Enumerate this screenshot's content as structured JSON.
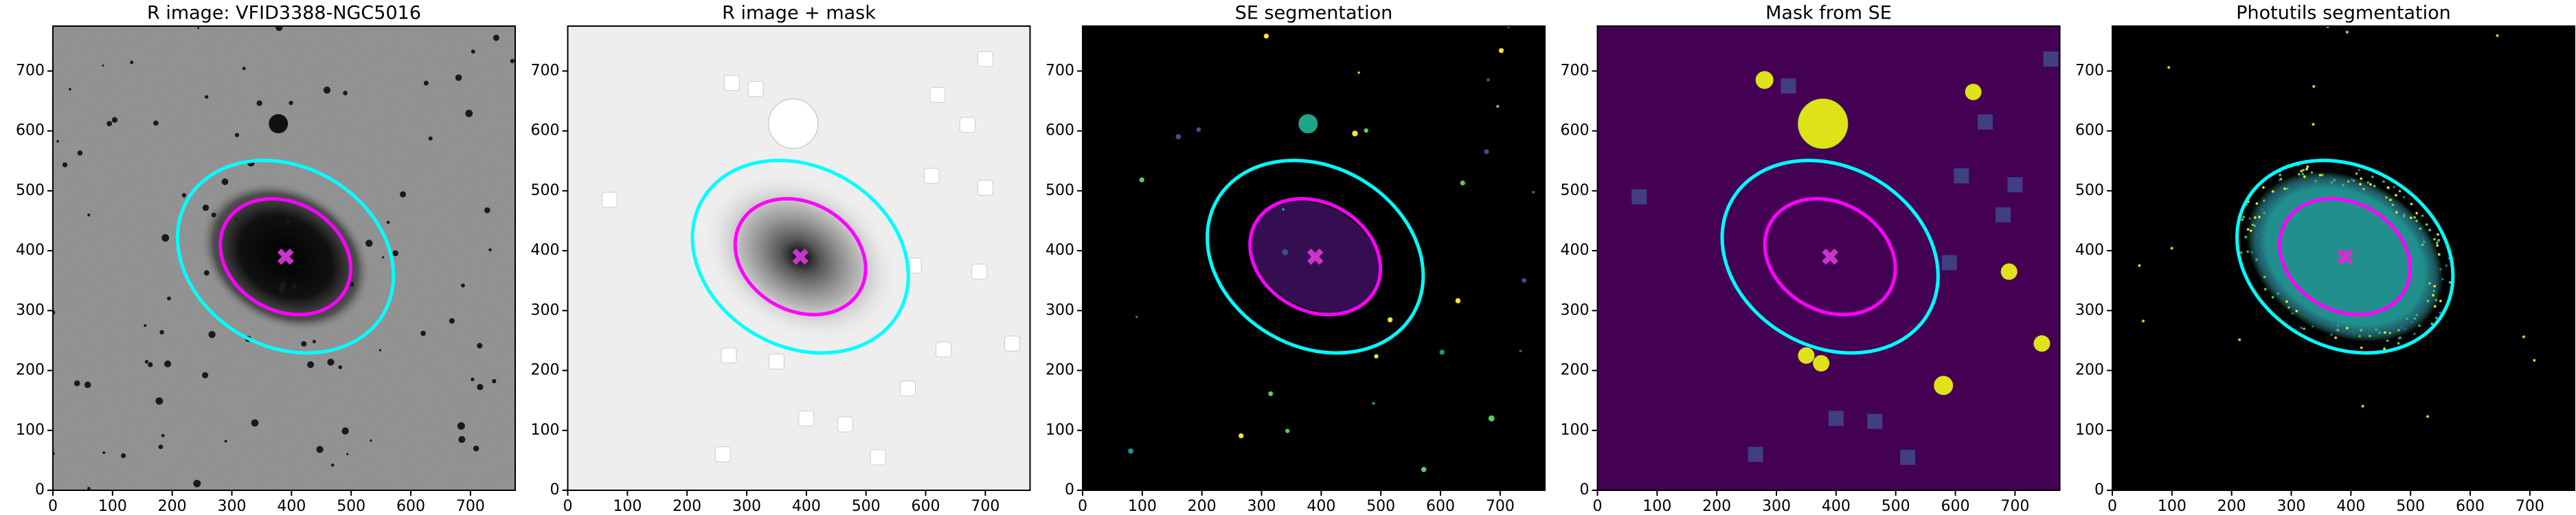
{
  "chart_data": [
    {
      "type": "image",
      "title": "R image: VFID3388-NGC5016",
      "background": "#8a8a8a",
      "xlim": [
        0,
        775
      ],
      "ylim": [
        0,
        775
      ],
      "xticks": [
        0,
        100,
        200,
        300,
        400,
        500,
        600,
        700
      ],
      "yticks": [
        0,
        100,
        200,
        300,
        400,
        500,
        600,
        700
      ],
      "ellipses": [
        {
          "x": 390,
          "y": 390,
          "a": 190,
          "b": 150,
          "angle": -30,
          "color": "#00ffff"
        },
        {
          "x": 390,
          "y": 390,
          "a": 115,
          "b": 90,
          "angle": -30,
          "color": "#ff00ff"
        }
      ],
      "marker": {
        "x": 390,
        "y": 390,
        "color": "#cc33cc"
      }
    },
    {
      "type": "image",
      "title": "R image + mask",
      "background": "#eeeeee",
      "xlim": [
        0,
        775
      ],
      "ylim": [
        0,
        775
      ],
      "xticks": [
        0,
        100,
        200,
        300,
        400,
        500,
        600,
        700
      ],
      "yticks": [
        0,
        100,
        200,
        300,
        400,
        500,
        600,
        700
      ],
      "ellipses": [
        {
          "x": 390,
          "y": 390,
          "a": 190,
          "b": 150,
          "angle": -30,
          "color": "#00ffff"
        },
        {
          "x": 390,
          "y": 390,
          "a": 115,
          "b": 90,
          "angle": -30,
          "color": "#ff00ff"
        }
      ],
      "marker": {
        "x": 390,
        "y": 390,
        "color": "#cc33cc"
      }
    },
    {
      "type": "image",
      "title": "SE segmentation",
      "background": "#000000",
      "xlim": [
        0,
        775
      ],
      "ylim": [
        0,
        775
      ],
      "xticks": [
        0,
        100,
        200,
        300,
        400,
        500,
        600,
        700
      ],
      "yticks": [
        0,
        100,
        200,
        300,
        400,
        500,
        600,
        700
      ],
      "ellipses": [
        {
          "x": 390,
          "y": 390,
          "a": 190,
          "b": 150,
          "angle": -30,
          "color": "#00ffff"
        },
        {
          "x": 390,
          "y": 390,
          "a": 115,
          "b": 90,
          "angle": -30,
          "color": "#ff00ff"
        }
      ],
      "marker": {
        "x": 390,
        "y": 390,
        "color": "#cc33cc"
      }
    },
    {
      "type": "image",
      "title": "Mask from SE",
      "background": "#440154",
      "xlim": [
        0,
        775
      ],
      "ylim": [
        0,
        775
      ],
      "xticks": [
        0,
        100,
        200,
        300,
        400,
        500,
        600,
        700
      ],
      "yticks": [
        0,
        100,
        200,
        300,
        400,
        500,
        600,
        700
      ],
      "ellipses": [
        {
          "x": 390,
          "y": 390,
          "a": 190,
          "b": 150,
          "angle": -30,
          "color": "#00ffff"
        },
        {
          "x": 390,
          "y": 390,
          "a": 115,
          "b": 90,
          "angle": -30,
          "color": "#ff00ff"
        }
      ],
      "marker": {
        "x": 390,
        "y": 390,
        "color": "#cc33cc"
      }
    },
    {
      "type": "image",
      "title": "Photutils segmentation",
      "background": "#000000",
      "xlim": [
        0,
        775
      ],
      "ylim": [
        0,
        775
      ],
      "xticks": [
        0,
        100,
        200,
        300,
        400,
        500,
        600,
        700
      ],
      "yticks": [
        0,
        100,
        200,
        300,
        400,
        500,
        600,
        700
      ],
      "ellipses": [
        {
          "x": 390,
          "y": 390,
          "a": 190,
          "b": 150,
          "angle": -30,
          "color": "#00ffff"
        },
        {
          "x": 390,
          "y": 390,
          "a": 115,
          "b": 90,
          "angle": -30,
          "color": "#ff00ff"
        }
      ],
      "marker": {
        "x": 390,
        "y": 390,
        "color": "#cc33cc"
      }
    }
  ]
}
